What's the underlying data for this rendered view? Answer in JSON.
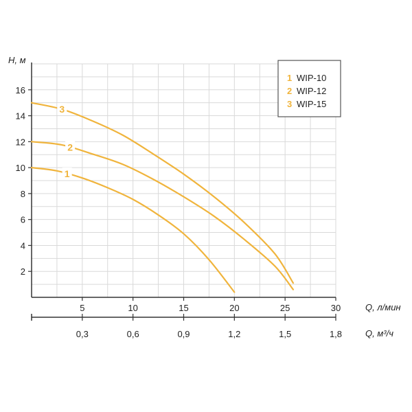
{
  "chart_data": {
    "type": "line",
    "ylabel": "H, м",
    "xlabel": "Q, л/мин",
    "x2label": "Q, м³/ч",
    "xlim": [
      0,
      30
    ],
    "ylim": [
      0,
      18
    ],
    "x_ticks": [
      "5",
      "10",
      "15",
      "20",
      "25",
      "30"
    ],
    "x_tick_values": [
      5,
      10,
      15,
      20,
      25,
      30
    ],
    "x2_ticks": [
      "0,3",
      "0,6",
      "0,9",
      "1,2",
      "1,5",
      "1,8"
    ],
    "y_ticks": [
      "2",
      "4",
      "6",
      "8",
      "10",
      "12",
      "14",
      "16"
    ],
    "y_tick_values": [
      2,
      4,
      6,
      8,
      10,
      12,
      14,
      16
    ],
    "grid": true,
    "legend_position": "top-right",
    "curve_color": "#F0B43C",
    "grid_color": "#D9D9D9",
    "series": [
      {
        "name": "WIP-10",
        "label": "1",
        "x": [
          0,
          2.5,
          5,
          7.5,
          10,
          12.5,
          15,
          17.5,
          20
        ],
        "y": [
          10,
          9.75,
          9.2,
          8.45,
          7.55,
          6.35,
          4.9,
          2.9,
          0.4
        ]
      },
      {
        "name": "WIP-12",
        "label": "2",
        "x": [
          0,
          3,
          6,
          9,
          12,
          15,
          18,
          21,
          24,
          25.8
        ],
        "y": [
          12,
          11.75,
          11.05,
          10.25,
          9.1,
          7.75,
          6.25,
          4.45,
          2.4,
          0.6
        ]
      },
      {
        "name": "WIP-15",
        "label": "3",
        "x": [
          0,
          3,
          6,
          9,
          12,
          15,
          18,
          21,
          24,
          25.8
        ],
        "y": [
          15,
          14.5,
          13.6,
          12.5,
          11.05,
          9.5,
          7.75,
          5.75,
          3.35,
          1.1
        ]
      }
    ]
  }
}
